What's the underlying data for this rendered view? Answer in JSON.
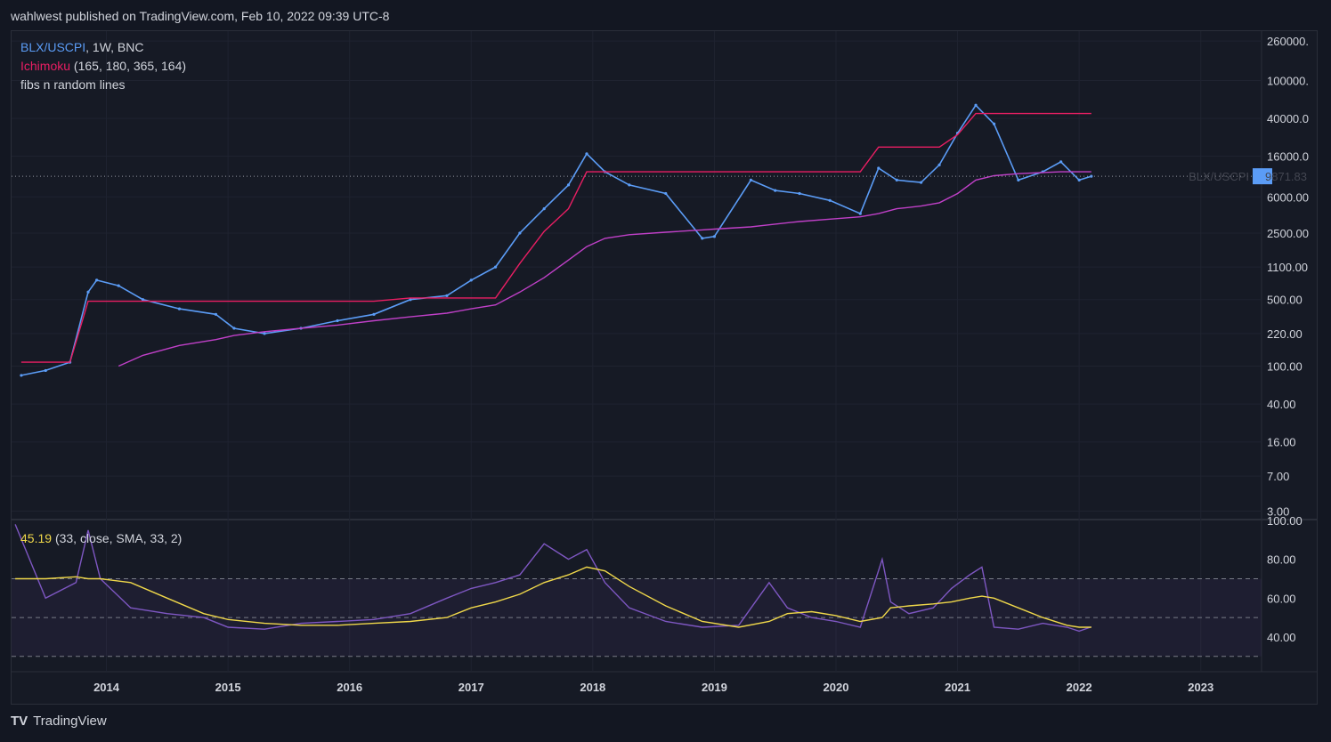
{
  "header": {
    "text": "wahlwest published on TradingView.com, Feb 10, 2022 09:39 UTC-8"
  },
  "legend": {
    "symbol_line_prefix": "BLX/USCPI",
    "symbol_line_suffix": ", 1W, BNC",
    "indicator_name": "Ichimoku",
    "indicator_params": "(165, 180, 365, 164)",
    "third_line": "fibs n random lines"
  },
  "rsi_legend": {
    "value": "45.19",
    "params": "(33, close, SMA, 33, 2)"
  },
  "price_tag": {
    "label": "BLX/USCPI",
    "value": "9871.83"
  },
  "footer": {
    "brand": "TradingView"
  },
  "colors": {
    "background": "#131722",
    "price": "#5b9cf6",
    "ichimoku_red": "#e91e63",
    "moving_avg_pink": "#c040c8",
    "rsi": "#7e57c2",
    "rsi_ma": "#f0d84a"
  },
  "chart_data": [
    {
      "type": "line",
      "title": "BLX/USCPI, 1W, BNC",
      "y_scale": "log",
      "yticks": [
        "260000.",
        "100000.",
        "40000.0",
        "16000.0",
        "6000.00",
        "2500.00",
        "1100.00",
        "500.00",
        "220.00",
        "100.00",
        "40.00",
        "16.00",
        "7.00",
        "3.00"
      ],
      "ytick_values": [
        260000,
        100000,
        40000,
        16000,
        6000,
        2500,
        1100,
        500,
        220,
        100,
        40,
        16,
        7,
        3
      ],
      "xticks": [
        "2014",
        "2015",
        "2016",
        "2017",
        "2018",
        "2019",
        "2020",
        "2021",
        "2022",
        "2023"
      ],
      "x": [
        2013.3,
        2013.5,
        2013.7,
        2013.85,
        2013.92,
        2014.1,
        2014.3,
        2014.6,
        2014.9,
        2015.05,
        2015.3,
        2015.6,
        2015.9,
        2016.2,
        2016.5,
        2016.8,
        2017.0,
        2017.2,
        2017.4,
        2017.6,
        2017.8,
        2017.95,
        2018.1,
        2018.3,
        2018.6,
        2018.9,
        2019.0,
        2019.3,
        2019.5,
        2019.7,
        2019.95,
        2020.2,
        2020.35,
        2020.5,
        2020.7,
        2020.85,
        2021.0,
        2021.15,
        2021.3,
        2021.5,
        2021.7,
        2021.85,
        2022.0,
        2022.1
      ],
      "series": [
        {
          "name": "BLX/USCPI",
          "values": [
            80,
            90,
            110,
            600,
            800,
            700,
            500,
            400,
            350,
            250,
            220,
            250,
            300,
            350,
            500,
            550,
            800,
            1100,
            2500,
            4500,
            8000,
            17000,
            11000,
            8000,
            6500,
            2200,
            2300,
            9000,
            7000,
            6500,
            5500,
            4000,
            12000,
            9000,
            8500,
            13000,
            28000,
            55000,
            35000,
            9000,
            11000,
            14000,
            9000,
            9871.83
          ]
        },
        {
          "name": "Ichimoku baseline",
          "values": [
            110,
            110,
            110,
            480,
            480,
            480,
            480,
            480,
            480,
            480,
            480,
            480,
            480,
            480,
            520,
            520,
            520,
            520,
            1200,
            2600,
            4500,
            11000,
            11000,
            11000,
            11000,
            11000,
            11000,
            11000,
            11000,
            11000,
            11000,
            11000,
            20000,
            20000,
            20000,
            20000,
            27000,
            45000,
            45000,
            45000,
            45000,
            45000,
            45000,
            45000
          ]
        },
        {
          "name": "Long moving average",
          "values": [
            null,
            null,
            null,
            null,
            null,
            100,
            130,
            165,
            190,
            210,
            230,
            250,
            270,
            300,
            330,
            360,
            400,
            440,
            600,
            850,
            1300,
            1800,
            2200,
            2400,
            2550,
            2700,
            2750,
            2900,
            3100,
            3300,
            3500,
            3700,
            4000,
            4500,
            4800,
            5200,
            6500,
            9000,
            10000,
            10500,
            10800,
            11000,
            11000,
            11000
          ]
        }
      ]
    },
    {
      "type": "line",
      "title": "RSI (33, close, SMA, 33, 2)",
      "yticks": [
        "100.00",
        "80.00",
        "60.00",
        "40.00"
      ],
      "ylim": [
        23,
        100
      ],
      "bands": [
        70,
        50,
        30
      ],
      "x": [
        2013.25,
        2013.5,
        2013.75,
        2013.85,
        2013.95,
        2014.2,
        2014.5,
        2014.8,
        2015.0,
        2015.3,
        2015.6,
        2015.9,
        2016.2,
        2016.5,
        2016.8,
        2017.0,
        2017.2,
        2017.4,
        2017.6,
        2017.8,
        2017.95,
        2018.1,
        2018.3,
        2018.6,
        2018.9,
        2019.2,
        2019.45,
        2019.6,
        2019.8,
        2020.0,
        2020.2,
        2020.38,
        2020.45,
        2020.6,
        2020.8,
        2020.95,
        2021.1,
        2021.2,
        2021.3,
        2021.5,
        2021.7,
        2021.9,
        2022.0,
        2022.1
      ],
      "series": [
        {
          "name": "RSI",
          "values": [
            98,
            60,
            68,
            95,
            70,
            55,
            52,
            50,
            45,
            44,
            47,
            48,
            49,
            52,
            60,
            65,
            68,
            72,
            88,
            80,
            85,
            68,
            55,
            48,
            45,
            46,
            68,
            55,
            50,
            48,
            45,
            80,
            58,
            52,
            55,
            65,
            72,
            76,
            45,
            44,
            47,
            45,
            43,
            45.19
          ]
        },
        {
          "name": "RSI MA",
          "values": [
            70,
            70,
            71,
            70,
            70,
            68,
            60,
            52,
            49,
            47,
            46,
            46,
            47,
            48,
            50,
            55,
            58,
            62,
            68,
            72,
            76,
            74,
            66,
            56,
            48,
            45,
            48,
            52,
            53,
            51,
            48,
            50,
            55,
            56,
            57,
            58,
            60,
            61,
            60,
            55,
            50,
            46,
            45,
            45
          ]
        }
      ]
    }
  ]
}
